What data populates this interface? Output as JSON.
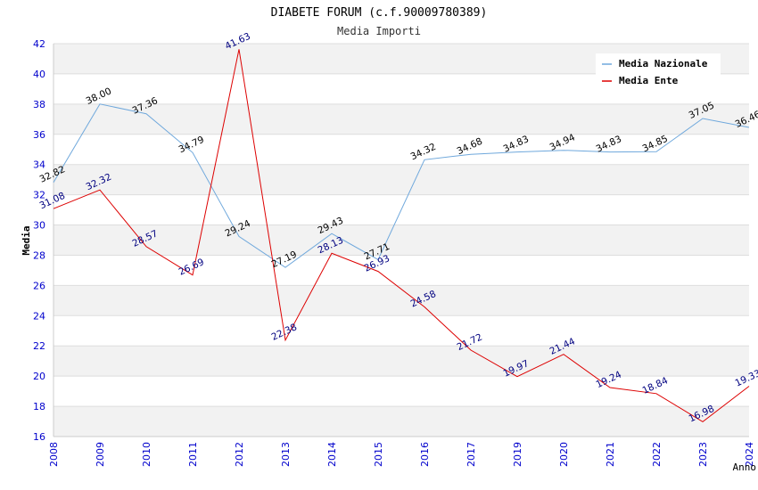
{
  "chart_data": {
    "type": "line",
    "title": "DIABETE FORUM (c.f.90009780389)",
    "subtitle": "Media Importi",
    "xlabel": "Anno",
    "ylabel": "Media",
    "ylim": [
      16,
      42
    ],
    "yticks": [
      16,
      18,
      20,
      22,
      24,
      26,
      28,
      30,
      32,
      34,
      36,
      38,
      40,
      42
    ],
    "categories": [
      "2008",
      "2009",
      "2010",
      "2011",
      "2012",
      "2013",
      "2014",
      "2015",
      "2016",
      "2017",
      "2019",
      "2020",
      "2021",
      "2022",
      "2023",
      "2024"
    ],
    "legend_position": "top-right",
    "series": [
      {
        "name": "Media Nazionale",
        "color": "#6fa8dc",
        "values": [
          32.82,
          38.0,
          37.36,
          34.79,
          29.24,
          27.19,
          29.43,
          27.71,
          34.32,
          34.68,
          34.83,
          34.94,
          34.83,
          34.85,
          37.05,
          36.46
        ],
        "labels": [
          "32.82",
          "38.00",
          "37.36",
          "34.79",
          "29.24",
          "27.19",
          "29.43",
          "27.71",
          "34.32",
          "34.68",
          "34.83",
          "34.94",
          "34.83",
          "34.85",
          "37.05",
          "36.46"
        ]
      },
      {
        "name": "Media Ente",
        "color": "#dd0000",
        "values": [
          31.08,
          32.32,
          28.57,
          26.69,
          41.63,
          22.38,
          28.13,
          26.93,
          24.58,
          21.72,
          19.97,
          21.44,
          19.24,
          18.84,
          16.98,
          19.33
        ],
        "labels": [
          "31.08",
          "32.32",
          "28.57",
          "26.69",
          "41.63",
          "22.38",
          "28.13",
          "26.93",
          "24.58",
          "21.72",
          "19.97",
          "21.44",
          "19.24",
          "18.84",
          "16.98",
          "19.33"
        ]
      }
    ]
  }
}
